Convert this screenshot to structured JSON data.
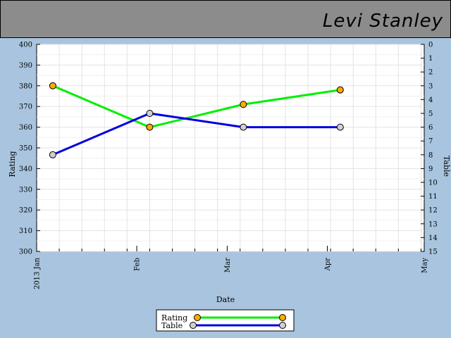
{
  "header": {
    "name": "Levi Stanley",
    "background": "#8c8c8c"
  },
  "chart_data": {
    "type": "line",
    "xlabel": "Date",
    "x_ticks": [
      "2013 Jan",
      "Feb",
      "Mar",
      "Apr",
      "May"
    ],
    "x_range": [
      "2013-01-01",
      "2013-05-01"
    ],
    "left_axis": {
      "label": "Rating",
      "ylim": [
        300,
        400
      ],
      "ticks": [
        300,
        310,
        320,
        330,
        340,
        350,
        360,
        370,
        380,
        390,
        400
      ]
    },
    "right_axis": {
      "label": "Table",
      "ylim": [
        15,
        0
      ],
      "inverted": true,
      "ticks": [
        0,
        1,
        2,
        3,
        4,
        5,
        6,
        7,
        8,
        9,
        10,
        11,
        12,
        13,
        14,
        15
      ]
    },
    "grid": true,
    "legend_placement": "bottom-center",
    "series": [
      {
        "name": "Rating",
        "axis": "left",
        "line_color": "#00ee00",
        "marker_color": "#ffaa00",
        "x": [
          "2013-01-06",
          "2013-02-05",
          "2013-03-06",
          "2013-04-05"
        ],
        "y": [
          380,
          360,
          371,
          378
        ]
      },
      {
        "name": "Table",
        "axis": "right",
        "line_color": "#0000dd",
        "marker_color": "#d0d0d0",
        "x": [
          "2013-01-06",
          "2013-02-05",
          "2013-03-06",
          "2013-04-05"
        ],
        "y": [
          8,
          5,
          6,
          6
        ]
      }
    ]
  }
}
